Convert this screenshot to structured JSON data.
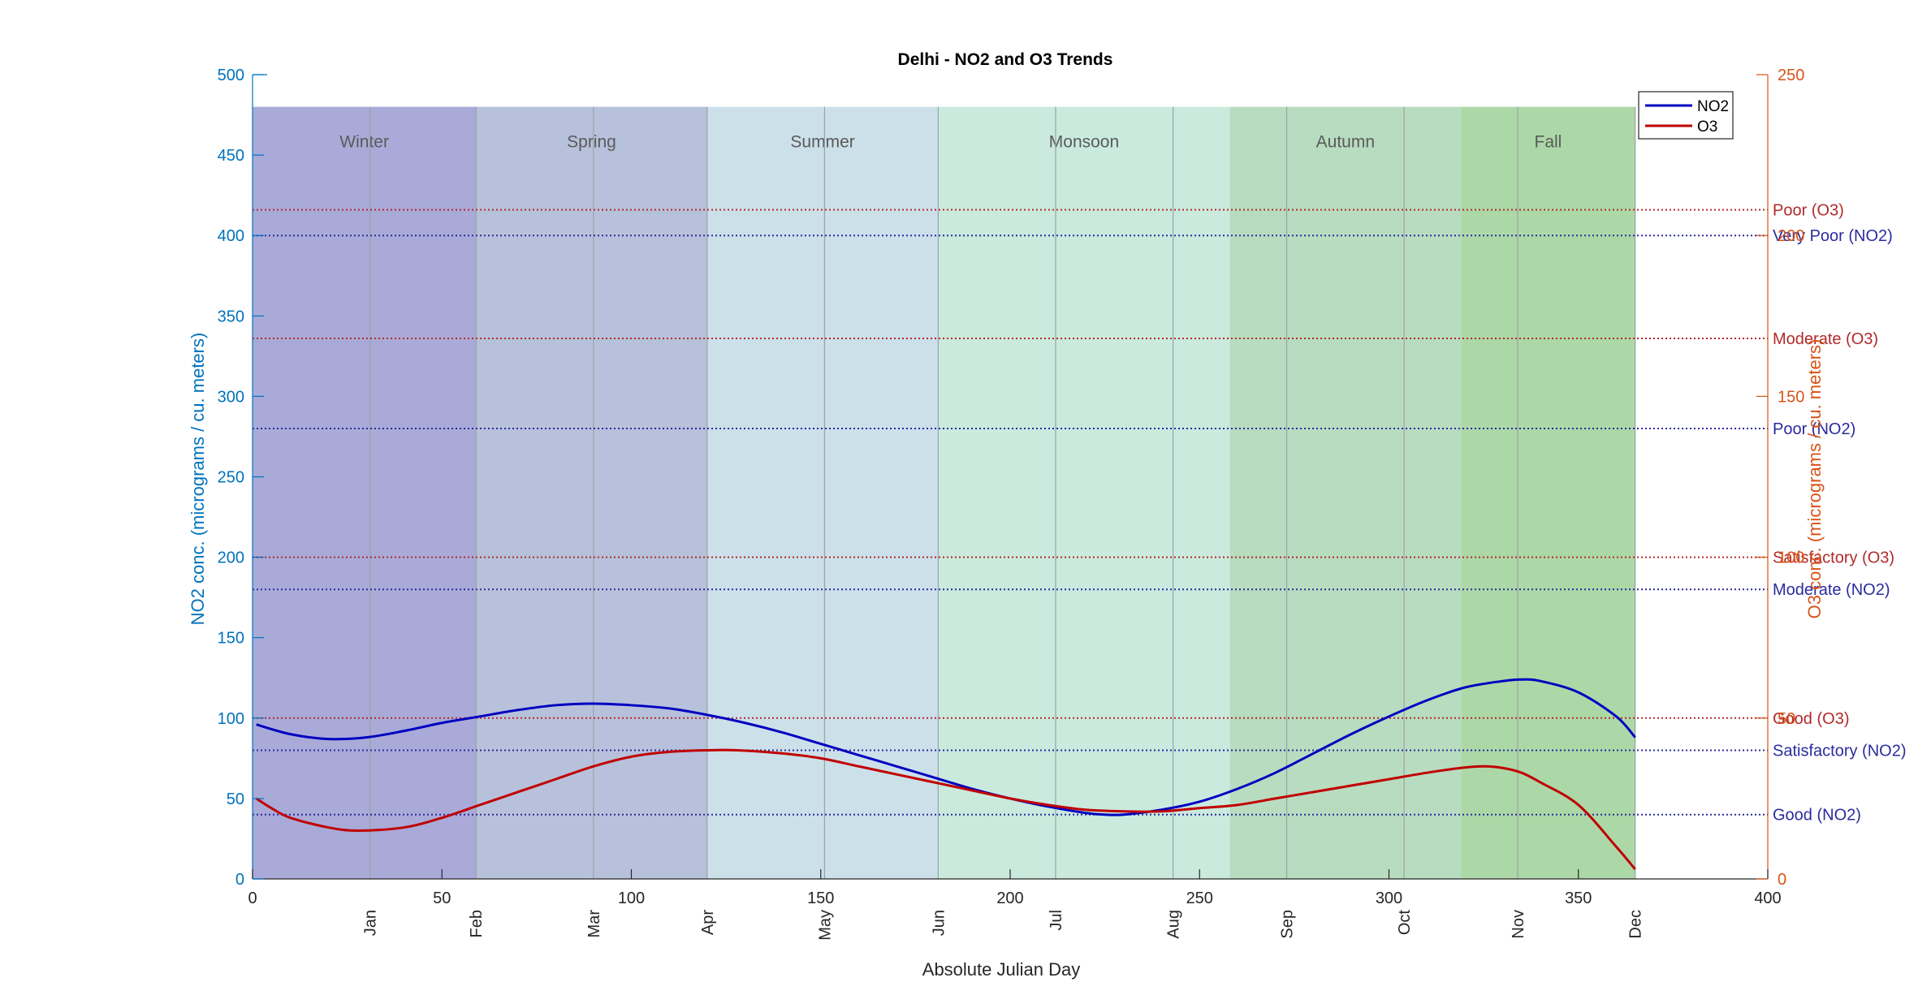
{
  "chart_data": {
    "type": "line",
    "title": "Delhi - NO2 and O3 Trends",
    "xlabel": "Absolute Julian Day",
    "ylabel_left": "NO2 conc. (micrograms / cu. meters)",
    "ylabel_right": "O3 conc. (micrograms / cu. meters)",
    "xlim": [
      0,
      400
    ],
    "ylim_left": [
      0,
      500
    ],
    "ylim_right": [
      0,
      250
    ],
    "x_ticks": [
      "0",
      "50",
      "100",
      "150",
      "200",
      "250",
      "300",
      "350",
      "400"
    ],
    "y_left_ticks": [
      "0",
      "50",
      "100",
      "150",
      "200",
      "250",
      "300",
      "350",
      "400",
      "450",
      "500"
    ],
    "y_right_ticks": [
      "0",
      "50",
      "100",
      "150",
      "200",
      "250"
    ],
    "month_markers": [
      {
        "label": "Jan",
        "day": 31
      },
      {
        "label": "Feb",
        "day": 59
      },
      {
        "label": "Mar",
        "day": 90
      },
      {
        "label": "Apr",
        "day": 120
      },
      {
        "label": "May",
        "day": 151
      },
      {
        "label": "Jun",
        "day": 181
      },
      {
        "label": "Jul",
        "day": 212
      },
      {
        "label": "Aug",
        "day": 243
      },
      {
        "label": "Sep",
        "day": 273
      },
      {
        "label": "Oct",
        "day": 304
      },
      {
        "label": "Nov",
        "day": 334
      },
      {
        "label": "Dec",
        "day": 365
      }
    ],
    "seasons": [
      {
        "label": "Winter",
        "start": 0,
        "end": 59,
        "color": "#aaaad9"
      },
      {
        "label": "Spring",
        "start": 59,
        "end": 120,
        "color": "#b7c1db"
      },
      {
        "label": "Summer",
        "start": 120,
        "end": 181,
        "color": "#cce0ea"
      },
      {
        "label": "Monsoon",
        "start": 181,
        "end": 258,
        "color": "#caeade"
      },
      {
        "label": "Autumn",
        "start": 258,
        "end": 319,
        "color": "#b8dcc0"
      },
      {
        "label": "Fall",
        "start": 319,
        "end": 365,
        "color": "#acd8a7"
      }
    ],
    "season_band_top_left_units": 480,
    "thresholds_left": [
      {
        "label": "Very Poor (NO2)",
        "value": 400,
        "color": "#2b2b9e"
      },
      {
        "label": "Poor (NO2)",
        "value": 280,
        "color": "#2b2b9e"
      },
      {
        "label": "Moderate (NO2)",
        "value": 180,
        "color": "#2b2b9e"
      },
      {
        "label": "Satisfactory (NO2)",
        "value": 80,
        "color": "#2b2b9e"
      },
      {
        "label": "Good (NO2)",
        "value": 40,
        "color": "#2b2b9e"
      }
    ],
    "thresholds_right": [
      {
        "label": "Poor (O3)",
        "value": 208,
        "color": "#b22a2a"
      },
      {
        "label": "Moderate (O3)",
        "value": 168,
        "color": "#b22a2a"
      },
      {
        "label": "Satisfactory (O3)",
        "value": 100,
        "color": "#b22a2a"
      },
      {
        "label": "Good (O3)",
        "value": 50,
        "color": "#b22a2a"
      }
    ],
    "series": [
      {
        "name": "NO2",
        "axis": "left",
        "color": "#0000c0",
        "x": [
          1,
          10,
          20,
          30,
          40,
          50,
          60,
          70,
          80,
          90,
          100,
          110,
          120,
          130,
          140,
          150,
          160,
          170,
          180,
          190,
          200,
          210,
          220,
          225,
          230,
          240,
          250,
          260,
          270,
          280,
          290,
          300,
          310,
          320,
          330,
          335,
          340,
          350,
          360,
          365
        ],
        "y": [
          96,
          90,
          87,
          88,
          92,
          97,
          101,
          105,
          108,
          109,
          108,
          106,
          102,
          97,
          91,
          84,
          77,
          70,
          63,
          56,
          50,
          45,
          41,
          40,
          40,
          43,
          48,
          56,
          66,
          78,
          90,
          101,
          111,
          119,
          123,
          124,
          123,
          116,
          101,
          88
        ]
      },
      {
        "name": "O3",
        "axis": "right",
        "color": "#c00000",
        "x": [
          1,
          5,
          10,
          20,
          28,
          40,
          50,
          60,
          70,
          80,
          90,
          100,
          110,
          120,
          128,
          140,
          150,
          160,
          170,
          180,
          190,
          200,
          210,
          220,
          230,
          240,
          250,
          260,
          270,
          280,
          290,
          300,
          310,
          319,
          325,
          330,
          335,
          340,
          350,
          360,
          365
        ],
        "y": [
          25,
          22,
          19,
          16,
          15,
          16,
          19,
          23,
          27,
          31,
          35,
          38,
          39.5,
          40,
          40,
          39,
          37.5,
          35,
          32.5,
          30,
          27.5,
          25,
          23,
          21.5,
          21,
          21,
          22,
          23,
          25,
          27,
          29,
          31,
          33,
          34.5,
          35,
          34.5,
          33,
          30,
          23,
          10,
          3
        ]
      }
    ],
    "legend": {
      "position": "top-right",
      "entries": [
        "NO2",
        "O3"
      ]
    },
    "grid": false
  },
  "colors": {
    "left_axis": "#0072bd",
    "right_axis": "#d95319",
    "month_line": "#9aa2a6",
    "season_label": "#5a5a5a"
  }
}
